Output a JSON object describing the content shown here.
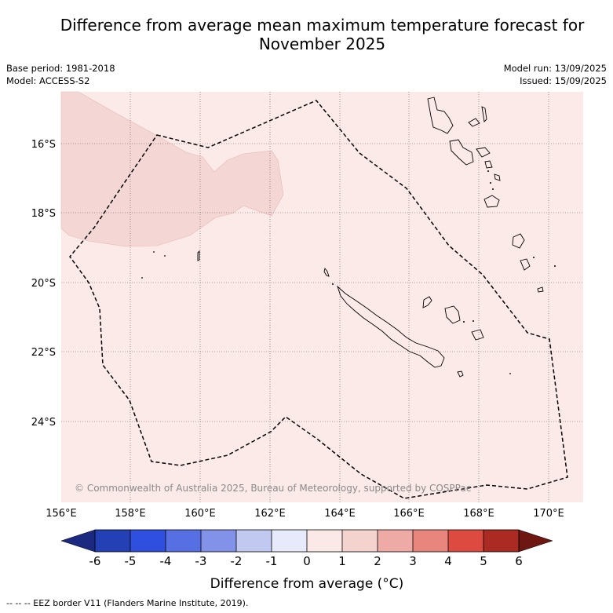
{
  "title": "Difference from average mean maximum temperature forecast for November 2025",
  "meta_left": {
    "base_period": "Base period: 1981-2018",
    "model": "Model: ACCESS-S2"
  },
  "meta_right": {
    "model_run": "Model run: 13/09/2025",
    "issued": "Issued: 15/09/2025"
  },
  "map": {
    "lon_range": [
      156,
      171
    ],
    "lat_range": [
      -26.5,
      -14.5
    ],
    "lat_ticks": [
      "16°S",
      "18°S",
      "20°S",
      "22°S",
      "24°S"
    ],
    "lon_ticks": [
      "156°E",
      "158°E",
      "160°E",
      "162°E",
      "164°E",
      "166°E",
      "168°E",
      "170°E"
    ],
    "background_anomaly": "0 to 1",
    "anomaly_region": "1 to 2",
    "copyright": "© Commonwealth of Australia 2025, Bureau of Meteorology, supported by COSPPac"
  },
  "colorbar": {
    "ticks": [
      "-6",
      "-5",
      "-4",
      "-3",
      "-2",
      "-1",
      "0",
      "1",
      "2",
      "3",
      "4",
      "5",
      "6"
    ],
    "colors": [
      "#1b2a80",
      "#2340b5",
      "#2f4fdf",
      "#566fe3",
      "#8192e8",
      "#c1c9f1",
      "#e6eafa",
      "#fbe9e7",
      "#f4d3cf",
      "#eeaba5",
      "#e8857c",
      "#dd4a3f",
      "#ab2a22",
      "#6e1612"
    ],
    "label": "Difference from average (°C)"
  },
  "footer": "-- -- -- EEZ border V11 (Flanders Marine Institute, 2019)."
}
